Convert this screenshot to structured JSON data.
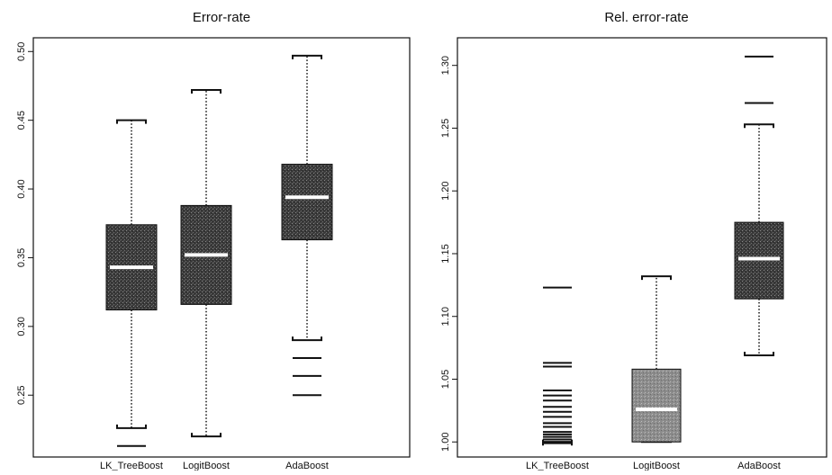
{
  "chart_data": [
    {
      "type": "box",
      "title": "Error-rate",
      "categories": [
        "LK_TreeBoost",
        "LogitBoost",
        "AdaBoost"
      ],
      "ylim": [
        0.205,
        0.51
      ],
      "yticks": [
        0.25,
        0.3,
        0.35,
        0.4,
        0.45,
        0.5
      ],
      "ytick_labels": [
        "0.25",
        "0.30",
        "0.35",
        "0.40",
        "0.45",
        "0.50"
      ],
      "grid": false,
      "boxes": [
        {
          "name": "LK_TreeBoost",
          "whisker_low": 0.226,
          "q1": 0.312,
          "median": 0.343,
          "q3": 0.374,
          "whisker_high": 0.45,
          "outliers": [
            0.213
          ]
        },
        {
          "name": "LogitBoost",
          "whisker_low": 0.22,
          "q1": 0.316,
          "median": 0.352,
          "q3": 0.388,
          "whisker_high": 0.472,
          "outliers": []
        },
        {
          "name": "AdaBoost",
          "whisker_low": 0.29,
          "q1": 0.363,
          "median": 0.394,
          "q3": 0.418,
          "whisker_high": 0.497,
          "outliers": [
            0.277,
            0.264,
            0.25
          ]
        }
      ]
    },
    {
      "type": "box",
      "title": "Rel. error-rate",
      "categories": [
        "LK_TreeBoost",
        "LogitBoost",
        "AdaBoost"
      ],
      "ylim": [
        0.988,
        1.322
      ],
      "yticks": [
        1.0,
        1.05,
        1.1,
        1.15,
        1.2,
        1.25,
        1.3
      ],
      "ytick_labels": [
        "1.00",
        "1.05",
        "1.10",
        "1.15",
        "1.20",
        "1.25",
        "1.30"
      ],
      "grid": false,
      "boxes": [
        {
          "name": "LK_TreeBoost",
          "whisker_low": 0.999,
          "q1": 1.0,
          "median": 1.0,
          "q3": 1.0,
          "whisker_high": 1.0,
          "outliers": [
            1.002,
            1.004,
            1.006,
            1.008,
            1.012,
            1.015,
            1.02,
            1.024,
            1.028,
            1.033,
            1.037,
            1.041,
            1.06,
            1.063,
            1.123
          ]
        },
        {
          "name": "LogitBoost",
          "whisker_low": 1.0,
          "q1": 1.0,
          "median": 1.026,
          "q3": 1.058,
          "whisker_high": 1.132,
          "outliers": []
        },
        {
          "name": "AdaBoost",
          "whisker_low": 1.069,
          "q1": 1.114,
          "median": 1.146,
          "q3": 1.175,
          "whisker_high": 1.253,
          "outliers": [
            1.27,
            1.307
          ]
        }
      ]
    }
  ]
}
